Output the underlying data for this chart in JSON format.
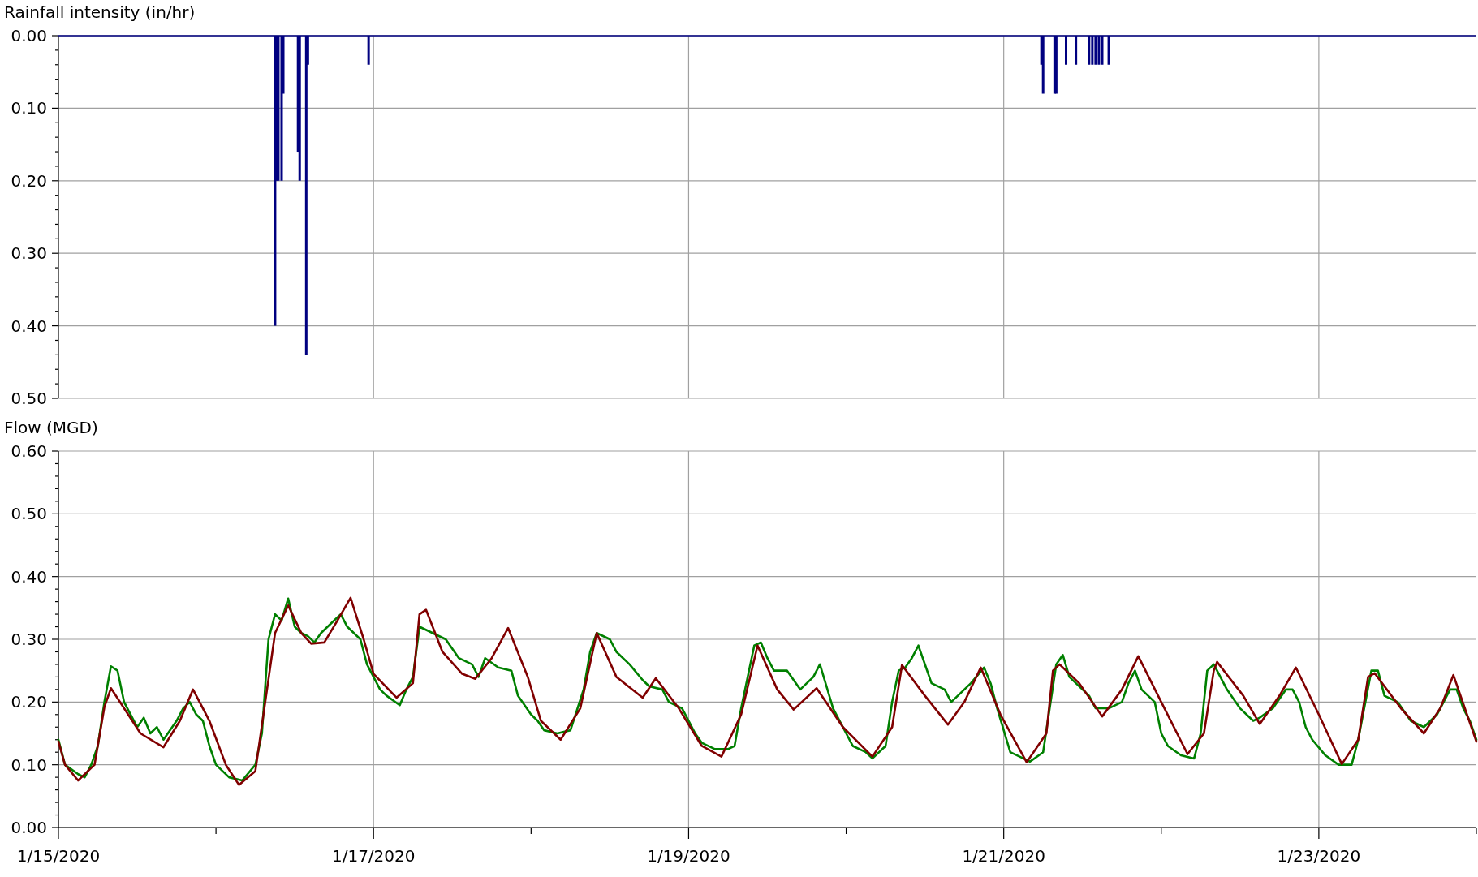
{
  "chart_data": [
    {
      "type": "bar",
      "ylabel": "Rainfall intensity (in/hr)",
      "xlim": [
        "2020-01-15",
        "2020-01-24"
      ],
      "ylim": [
        0.5,
        0
      ],
      "xticks": [
        {
          "value": "2020-01-17",
          "label": null
        },
        {
          "value": "2020-01-19",
          "label": null
        },
        {
          "value": "2020-01-21",
          "label": null
        },
        {
          "value": "2020-01-23",
          "label": null
        }
      ],
      "yticks": [
        {
          "value": 0,
          "label": "0.00"
        },
        {
          "value": 0.02,
          "label": null
        },
        {
          "value": 0.04,
          "label": null
        },
        {
          "value": 0.06,
          "label": null
        },
        {
          "value": 0.08,
          "label": null
        },
        {
          "value": 0.1,
          "label": "0.10"
        },
        {
          "value": 0.12,
          "label": null
        },
        {
          "value": 0.14,
          "label": null
        },
        {
          "value": 0.16,
          "label": null
        },
        {
          "value": 0.18,
          "label": null
        },
        {
          "value": 0.2,
          "label": "0.20"
        },
        {
          "value": 0.22,
          "label": null
        },
        {
          "value": 0.24,
          "label": null
        },
        {
          "value": 0.26,
          "label": null
        },
        {
          "value": 0.28,
          "label": null
        },
        {
          "value": 0.3,
          "label": "0.30"
        },
        {
          "value": 0.32,
          "label": null
        },
        {
          "value": 0.34,
          "label": null
        },
        {
          "value": 0.36,
          "label": null
        },
        {
          "value": 0.38,
          "label": null
        },
        {
          "value": 0.4,
          "label": "0.40"
        },
        {
          "value": 0.42,
          "label": null
        },
        {
          "value": 0.44,
          "label": null
        },
        {
          "value": 0.46,
          "label": null
        },
        {
          "value": 0.48,
          "label": null
        },
        {
          "value": 0.5,
          "label": "0.50"
        }
      ],
      "grid": true,
      "tick_labels": "y",
      "series": [
        {
          "color": "#000080",
          "x": [
            "2020-01-16T09:00",
            "2020-01-16T09:15",
            "2020-01-16T09:30",
            "2020-01-16T10:00",
            "2020-01-16T10:15",
            "2020-01-16T12:30",
            "2020-01-16T12:45",
            "2020-01-16T13:45",
            "2020-01-16T14:00",
            "2020-01-16T23:15",
            "2020-01-21T05:45",
            "2020-01-21T06:00",
            "2020-01-21T07:45",
            "2020-01-21T08:00",
            "2020-01-21T09:30",
            "2020-01-21T11:00",
            "2020-01-21T13:00",
            "2020-01-21T13:30",
            "2020-01-21T14:00",
            "2020-01-21T14:30",
            "2020-01-21T15:00",
            "2020-01-21T16:00"
          ],
          "values": [
            0.4,
            0.2,
            0.2,
            0.2,
            0.08,
            0.16,
            0.2,
            0.44,
            0.04,
            0.04,
            0.04,
            0.08,
            0.08,
            0.08,
            0.04,
            0.04,
            0.04,
            0.04,
            0.04,
            0.04,
            0.04,
            0.04
          ]
        }
      ]
    },
    {
      "type": "line",
      "ylabel": "Flow (MGD)",
      "xlim": [
        "2020-01-15",
        "2020-01-24"
      ],
      "ylim": [
        0,
        0.6
      ],
      "xticks": [
        {
          "value": "2020-01-15",
          "label": "1/15/2020"
        },
        {
          "value": "2020-01-16",
          "label": null
        },
        {
          "value": "2020-01-17",
          "label": "1/17/2020"
        },
        {
          "value": "2020-01-18",
          "label": null
        },
        {
          "value": "2020-01-19",
          "label": "1/19/2020"
        },
        {
          "value": "2020-01-20",
          "label": null
        },
        {
          "value": "2020-01-21",
          "label": "1/21/2020"
        },
        {
          "value": "2020-01-22",
          "label": null
        },
        {
          "value": "2020-01-23",
          "label": "1/23/2020"
        },
        {
          "value": "2020-01-24",
          "label": null
        }
      ],
      "yticks": [
        {
          "value": 0,
          "label": "0.00"
        },
        {
          "value": 0.02,
          "label": null
        },
        {
          "value": 0.04,
          "label": null
        },
        {
          "value": 0.06,
          "label": null
        },
        {
          "value": 0.08,
          "label": null
        },
        {
          "value": 0.1,
          "label": "0.10"
        },
        {
          "value": 0.12,
          "label": null
        },
        {
          "value": 0.14,
          "label": null
        },
        {
          "value": 0.16,
          "label": null
        },
        {
          "value": 0.18,
          "label": null
        },
        {
          "value": 0.2,
          "label": "0.20"
        },
        {
          "value": 0.22,
          "label": null
        },
        {
          "value": 0.24,
          "label": null
        },
        {
          "value": 0.26,
          "label": null
        },
        {
          "value": 0.28,
          "label": null
        },
        {
          "value": 0.3,
          "label": "0.30"
        },
        {
          "value": 0.32,
          "label": null
        },
        {
          "value": 0.34,
          "label": null
        },
        {
          "value": 0.36,
          "label": null
        },
        {
          "value": 0.38,
          "label": null
        },
        {
          "value": 0.4,
          "label": "0.40"
        },
        {
          "value": 0.42,
          "label": null
        },
        {
          "value": 0.44,
          "label": null
        },
        {
          "value": 0.46,
          "label": null
        },
        {
          "value": 0.48,
          "label": null
        },
        {
          "value": 0.5,
          "label": "0.50"
        },
        {
          "value": 0.52,
          "label": null
        },
        {
          "value": 0.54,
          "label": null
        },
        {
          "value": 0.56,
          "label": null
        },
        {
          "value": 0.58,
          "label": null
        },
        {
          "value": 0.6,
          "label": "0.60"
        }
      ],
      "grid": true,
      "series": [
        {
          "color": "#008000",
          "x": [
            "2020-01-15T00:00",
            "2020-01-15T01:00",
            "2020-01-15T03:00",
            "2020-01-15T04:00",
            "2020-01-15T05:00",
            "2020-01-15T06:00",
            "2020-01-15T07:00",
            "2020-01-15T08:00",
            "2020-01-15T09:00",
            "2020-01-15T10:00",
            "2020-01-15T11:00",
            "2020-01-15T12:00",
            "2020-01-15T13:00",
            "2020-01-15T14:00",
            "2020-01-15T15:00",
            "2020-01-15T16:00",
            "2020-01-15T18:00",
            "2020-01-15T19:00",
            "2020-01-15T20:00",
            "2020-01-15T21:00",
            "2020-01-15T22:00",
            "2020-01-15T23:00",
            "2020-01-16T00:00",
            "2020-01-16T02:00",
            "2020-01-16T04:00",
            "2020-01-16T06:00",
            "2020-01-16T07:00",
            "2020-01-16T08:00",
            "2020-01-16T09:00",
            "2020-01-16T10:00",
            "2020-01-16T11:00",
            "2020-01-16T12:00",
            "2020-01-16T13:00",
            "2020-01-16T14:00",
            "2020-01-16T15:00",
            "2020-01-16T16:00",
            "2020-01-16T17:00",
            "2020-01-16T18:00",
            "2020-01-16T19:00",
            "2020-01-16T20:00",
            "2020-01-16T22:00",
            "2020-01-16T23:00",
            "2020-01-17T01:00",
            "2020-01-17T02:00",
            "2020-01-17T04:00",
            "2020-01-17T05:00",
            "2020-01-17T06:00",
            "2020-01-17T07:00",
            "2020-01-17T09:00",
            "2020-01-17T11:00",
            "2020-01-17T13:00",
            "2020-01-17T15:00",
            "2020-01-17T16:00",
            "2020-01-17T17:00",
            "2020-01-17T19:00",
            "2020-01-17T21:00",
            "2020-01-17T22:00",
            "2020-01-18T00:00",
            "2020-01-18T01:00",
            "2020-01-18T02:00",
            "2020-01-18T04:00",
            "2020-01-18T06:00",
            "2020-01-18T08:00",
            "2020-01-18T09:00",
            "2020-01-18T10:00",
            "2020-01-18T12:00",
            "2020-01-18T13:00",
            "2020-01-18T15:00",
            "2020-01-18T17:00",
            "2020-01-18T18:00",
            "2020-01-18T20:00",
            "2020-01-18T21:00",
            "2020-01-18T23:00",
            "2020-01-19T01:00",
            "2020-01-19T02:00",
            "2020-01-19T04:00",
            "2020-01-19T06:00",
            "2020-01-19T07:00",
            "2020-01-19T08:00",
            "2020-01-19T10:00",
            "2020-01-19T11:00",
            "2020-01-19T12:00",
            "2020-01-19T13:00",
            "2020-01-19T15:00",
            "2020-01-19T17:00",
            "2020-01-19T19:00",
            "2020-01-19T20:00",
            "2020-01-19T22:00",
            "2020-01-20T00:00",
            "2020-01-20T01:00",
            "2020-01-20T03:00",
            "2020-01-20T04:00",
            "2020-01-20T06:00",
            "2020-01-20T07:00",
            "2020-01-20T08:00",
            "2020-01-20T09:00",
            "2020-01-20T10:00",
            "2020-01-20T11:00",
            "2020-01-20T13:00",
            "2020-01-20T15:00",
            "2020-01-20T16:00",
            "2020-01-20T17:00",
            "2020-01-20T19:00",
            "2020-01-20T21:00",
            "2020-01-20T22:00",
            "2020-01-20T23:00",
            "2020-01-21T01:00",
            "2020-01-21T03:00",
            "2020-01-21T04:00",
            "2020-01-21T06:00",
            "2020-01-21T07:00",
            "2020-01-21T08:00",
            "2020-01-21T09:00",
            "2020-01-21T10:00",
            "2020-01-21T12:00",
            "2020-01-21T13:00",
            "2020-01-21T14:00",
            "2020-01-21T16:00",
            "2020-01-21T18:00",
            "2020-01-21T19:00",
            "2020-01-21T20:00",
            "2020-01-21T21:00",
            "2020-01-21T23:00",
            "2020-01-22T00:00",
            "2020-01-22T01:00",
            "2020-01-22T03:00",
            "2020-01-22T05:00",
            "2020-01-22T06:00",
            "2020-01-22T07:00",
            "2020-01-22T08:00",
            "2020-01-22T10:00",
            "2020-01-22T12:00",
            "2020-01-22T14:00",
            "2020-01-22T15:00",
            "2020-01-22T17:00",
            "2020-01-22T19:00",
            "2020-01-22T20:00",
            "2020-01-22T21:00",
            "2020-01-22T22:00",
            "2020-01-22T23:00",
            "2020-01-23T01:00",
            "2020-01-23T03:00",
            "2020-01-23T05:00",
            "2020-01-23T06:00",
            "2020-01-23T08:00",
            "2020-01-23T09:00",
            "2020-01-23T10:00",
            "2020-01-23T12:00",
            "2020-01-23T14:00",
            "2020-01-23T16:00",
            "2020-01-23T18:00",
            "2020-01-23T20:00",
            "2020-01-23T21:00",
            "2020-01-23T22:00",
            "2020-01-23T23:00",
            "2020-01-24T00:00"
          ],
          "values": [
            0.14,
            0.1,
            0.085,
            0.08,
            0.1,
            0.13,
            0.2,
            0.257,
            0.25,
            0.2,
            0.18,
            0.16,
            0.175,
            0.15,
            0.16,
            0.14,
            0.17,
            0.19,
            0.2,
            0.18,
            0.17,
            0.13,
            0.1,
            0.08,
            0.075,
            0.1,
            0.15,
            0.3,
            0.34,
            0.33,
            0.365,
            0.32,
            0.31,
            0.305,
            0.295,
            0.31,
            0.32,
            0.33,
            0.34,
            0.32,
            0.3,
            0.26,
            0.22,
            0.21,
            0.195,
            0.22,
            0.24,
            0.32,
            0.31,
            0.3,
            0.27,
            0.26,
            0.24,
            0.27,
            0.255,
            0.25,
            0.21,
            0.18,
            0.17,
            0.155,
            0.15,
            0.155,
            0.22,
            0.28,
            0.31,
            0.3,
            0.28,
            0.26,
            0.235,
            0.225,
            0.22,
            0.2,
            0.19,
            0.15,
            0.135,
            0.125,
            0.125,
            0.13,
            0.19,
            0.29,
            0.295,
            0.27,
            0.25,
            0.25,
            0.22,
            0.24,
            0.26,
            0.19,
            0.15,
            0.13,
            0.12,
            0.11,
            0.13,
            0.2,
            0.25,
            0.255,
            0.27,
            0.29,
            0.23,
            0.22,
            0.2,
            0.21,
            0.23,
            0.255,
            0.23,
            0.19,
            0.12,
            0.11,
            0.105,
            0.12,
            0.19,
            0.26,
            0.275,
            0.24,
            0.22,
            0.21,
            0.19,
            0.19,
            0.2,
            0.23,
            0.25,
            0.22,
            0.2,
            0.15,
            0.13,
            0.115,
            0.11,
            0.15,
            0.25,
            0.26,
            0.22,
            0.19,
            0.17,
            0.175,
            0.19,
            0.22,
            0.22,
            0.2,
            0.16,
            0.14,
            0.115,
            0.1,
            0.1,
            0.14,
            0.25,
            0.25,
            0.21,
            0.2,
            0.17,
            0.16,
            0.18,
            0.22,
            0.22,
            0.19,
            0.17,
            0.14
          ]
        },
        {
          "color": "#800000",
          "x": [
            "2020-01-15T00:00",
            "2020-01-15T01:00",
            "2020-01-15T03:00",
            "2020-01-15T05:30",
            "2020-01-15T07:00",
            "2020-01-15T08:00",
            "2020-01-15T10:00",
            "2020-01-15T12:30",
            "2020-01-15T16:00",
            "2020-01-15T18:30",
            "2020-01-15T20:30",
            "2020-01-15T23:00",
            "2020-01-16T01:30",
            "2020-01-16T03:30",
            "2020-01-16T06:00",
            "2020-01-16T07:30",
            "2020-01-16T09:00",
            "2020-01-16T11:00",
            "2020-01-16T13:00",
            "2020-01-16T14:30",
            "2020-01-16T16:30",
            "2020-01-16T18:30",
            "2020-01-16T20:30",
            "2020-01-16T22:30",
            "2020-01-17T00:00",
            "2020-01-17T03:30",
            "2020-01-17T06:00",
            "2020-01-17T07:00",
            "2020-01-17T08:00",
            "2020-01-17T10:30",
            "2020-01-17T13:30",
            "2020-01-17T15:30",
            "2020-01-17T18:00",
            "2020-01-17T20:30",
            "2020-01-17T23:30",
            "2020-01-18T01:30",
            "2020-01-18T04:30",
            "2020-01-18T07:30",
            "2020-01-18T10:00",
            "2020-01-18T13:00",
            "2020-01-18T17:00",
            "2020-01-18T19:00",
            "2020-01-18T22:30",
            "2020-01-19T02:00",
            "2020-01-19T05:00",
            "2020-01-19T08:00",
            "2020-01-19T10:30",
            "2020-01-19T13:30",
            "2020-01-19T16:00",
            "2020-01-19T19:30",
            "2020-01-19T23:30",
            "2020-01-20T04:00",
            "2020-01-20T07:00",
            "2020-01-20T08:30",
            "2020-01-20T12:00",
            "2020-01-20T15:30",
            "2020-01-20T18:00",
            "2020-01-20T20:30",
            "2020-01-20T23:30",
            "2020-01-21T03:30",
            "2020-01-21T06:30",
            "2020-01-21T07:30",
            "2020-01-21T08:30",
            "2020-01-21T11:30",
            "2020-01-21T15:00",
            "2020-01-21T18:00",
            "2020-01-21T20:30",
            "2020-01-22T00:00",
            "2020-01-22T04:00",
            "2020-01-22T06:30",
            "2020-01-22T08:00",
            "2020-01-22T08:30",
            "2020-01-22T12:30",
            "2020-01-22T15:00",
            "2020-01-22T18:00",
            "2020-01-22T20:30",
            "2020-01-23T00:00",
            "2020-01-23T03:30",
            "2020-01-23T06:00",
            "2020-01-23T07:30",
            "2020-01-23T08:30",
            "2020-01-23T12:30",
            "2020-01-23T16:00",
            "2020-01-23T18:30",
            "2020-01-23T20:30",
            "2020-01-24T00:00"
          ],
          "values": [
            0.137,
            0.1,
            0.075,
            0.1,
            0.192,
            0.222,
            0.19,
            0.15,
            0.128,
            0.17,
            0.22,
            0.17,
            0.1,
            0.068,
            0.09,
            0.2,
            0.31,
            0.354,
            0.31,
            0.293,
            0.295,
            0.33,
            0.366,
            0.3,
            0.245,
            0.207,
            0.23,
            0.34,
            0.347,
            0.28,
            0.245,
            0.237,
            0.27,
            0.318,
            0.24,
            0.17,
            0.14,
            0.19,
            0.31,
            0.24,
            0.207,
            0.238,
            0.19,
            0.13,
            0.113,
            0.18,
            0.29,
            0.22,
            0.188,
            0.222,
            0.16,
            0.113,
            0.16,
            0.259,
            0.21,
            0.164,
            0.2,
            0.255,
            0.18,
            0.104,
            0.15,
            0.25,
            0.26,
            0.23,
            0.177,
            0.22,
            0.273,
            0.2,
            0.117,
            0.15,
            0.25,
            0.264,
            0.21,
            0.165,
            0.21,
            0.255,
            0.18,
            0.101,
            0.14,
            0.24,
            0.246,
            0.19,
            0.15,
            0.19,
            0.243,
            0.137
          ]
        }
      ]
    }
  ]
}
